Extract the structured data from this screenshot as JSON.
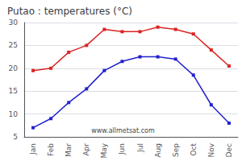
{
  "chart_data": {
    "type": "line",
    "title": "Putao : temperatures (°C)",
    "categories": [
      "Jan",
      "Feb",
      "Mar",
      "Apr",
      "May",
      "Jun",
      "Jul",
      "Aug",
      "Sep",
      "Oct",
      "Nov",
      "Dec"
    ],
    "series": [
      {
        "color": "#dd2222",
        "marker": "square",
        "values": [
          19.5,
          20.0,
          23.5,
          25.0,
          28.5,
          28.0,
          28.0,
          29.0,
          28.5,
          27.5,
          24.0,
          20.5
        ]
      },
      {
        "color": "#2222cc",
        "marker": "square",
        "values": [
          7.0,
          9.0,
          12.5,
          15.5,
          19.5,
          21.5,
          22.5,
          22.5,
          22.0,
          18.5,
          12.0,
          8.0
        ]
      }
    ],
    "ylim": [
      5,
      30
    ],
    "yticks": [
      5,
      10,
      15,
      20,
      25,
      30
    ],
    "grid": true,
    "annotation": "www.allmetsat.com"
  }
}
